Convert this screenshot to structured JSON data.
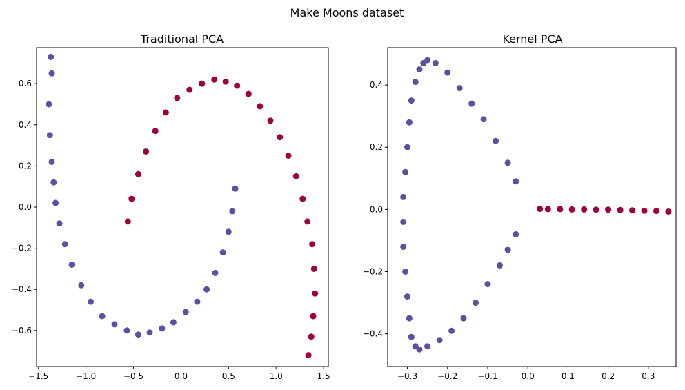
{
  "figure": {
    "suptitle": "Make Moons dataset",
    "colors": {
      "class0": "#5e4fa2",
      "class1": "#9e0142",
      "axis": "#000000",
      "background": "#ffffff"
    }
  },
  "chart_data": [
    {
      "type": "scatter",
      "title": "Traditional PCA",
      "xlabel": "",
      "ylabel": "",
      "xlim": [
        -1.52,
        1.55
      ],
      "ylim": [
        -0.775,
        0.775
      ],
      "xticks": [
        -1.5,
        -1.0,
        -0.5,
        0.0,
        0.5,
        1.0,
        1.5
      ],
      "xtick_labels": [
        "−1.5",
        "−1.0",
        "−0.5",
        "0.0",
        "0.5",
        "1.0",
        "1.5"
      ],
      "yticks": [
        -0.6,
        -0.4,
        -0.2,
        0.0,
        0.2,
        0.4,
        0.6
      ],
      "ytick_labels": [
        "−0.6",
        "−0.4",
        "−0.2",
        "0.0",
        "0.2",
        "0.4",
        "0.6"
      ],
      "grid": false,
      "series": [
        {
          "color": "#5e4fa2",
          "points": [
            [
              -1.37,
              0.73
            ],
            [
              -1.36,
              0.65
            ],
            [
              -1.39,
              0.5
            ],
            [
              -1.38,
              0.35
            ],
            [
              -1.36,
              0.22
            ],
            [
              -1.34,
              0.12
            ],
            [
              -1.32,
              0.02
            ],
            [
              -1.28,
              -0.08
            ],
            [
              -1.22,
              -0.18
            ],
            [
              -1.15,
              -0.28
            ],
            [
              -1.05,
              -0.38
            ],
            [
              -0.95,
              -0.46
            ],
            [
              -0.83,
              -0.53
            ],
            [
              -0.7,
              -0.57
            ],
            [
              -0.57,
              -0.6
            ],
            [
              -0.45,
              -0.62
            ],
            [
              -0.33,
              -0.61
            ],
            [
              -0.2,
              -0.59
            ],
            [
              -0.08,
              -0.56
            ],
            [
              0.05,
              -0.51
            ],
            [
              0.17,
              -0.46
            ],
            [
              0.27,
              -0.4
            ],
            [
              0.36,
              -0.32
            ],
            [
              0.44,
              -0.22
            ],
            [
              0.5,
              -0.12
            ],
            [
              0.54,
              -0.02
            ],
            [
              0.57,
              0.09
            ]
          ]
        },
        {
          "color": "#9e0142",
          "points": [
            [
              -0.56,
              -0.07
            ],
            [
              -0.52,
              0.04
            ],
            [
              -0.45,
              0.16
            ],
            [
              -0.37,
              0.27
            ],
            [
              -0.27,
              0.37
            ],
            [
              -0.16,
              0.46
            ],
            [
              -0.04,
              0.53
            ],
            [
              0.09,
              0.57
            ],
            [
              0.22,
              0.6
            ],
            [
              0.35,
              0.62
            ],
            [
              0.47,
              0.61
            ],
            [
              0.59,
              0.59
            ],
            [
              0.71,
              0.55
            ],
            [
              0.83,
              0.49
            ],
            [
              0.94,
              0.42
            ],
            [
              1.04,
              0.34
            ],
            [
              1.13,
              0.25
            ],
            [
              1.21,
              0.15
            ],
            [
              1.28,
              0.04
            ],
            [
              1.33,
              -0.07
            ],
            [
              1.38,
              -0.18
            ],
            [
              1.4,
              -0.3
            ],
            [
              1.41,
              -0.42
            ],
            [
              1.39,
              -0.53
            ],
            [
              1.37,
              -0.63
            ],
            [
              1.34,
              -0.72
            ]
          ]
        }
      ]
    },
    {
      "type": "scatter",
      "title": "Kernel PCA",
      "xlabel": "",
      "ylabel": "",
      "xlim": [
        -0.349,
        0.369
      ],
      "ylim": [
        -0.505,
        0.52
      ],
      "xticks": [
        -0.3,
        -0.2,
        -0.1,
        0.0,
        0.1,
        0.2,
        0.3
      ],
      "xtick_labels": [
        "−0.3",
        "−0.2",
        "−0.1",
        "0.0",
        "0.1",
        "0.2",
        "0.3"
      ],
      "yticks": [
        -0.4,
        -0.2,
        0.0,
        0.2,
        0.4
      ],
      "ytick_labels": [
        "−0.4",
        "−0.2",
        "0.0",
        "0.2",
        "0.4"
      ],
      "grid": false,
      "series": [
        {
          "color": "#5e4fa2",
          "points": [
            [
              -0.03,
              0.09
            ],
            [
              -0.05,
              0.15
            ],
            [
              -0.08,
              0.22
            ],
            [
              -0.11,
              0.29
            ],
            [
              -0.14,
              0.34
            ],
            [
              -0.17,
              0.39
            ],
            [
              -0.2,
              0.44
            ],
            [
              -0.23,
              0.47
            ],
            [
              -0.25,
              0.48
            ],
            [
              -0.26,
              0.47
            ],
            [
              -0.27,
              0.45
            ],
            [
              -0.28,
              0.41
            ],
            [
              -0.29,
              0.35
            ],
            [
              -0.295,
              0.28
            ],
            [
              -0.3,
              0.2
            ],
            [
              -0.305,
              0.12
            ],
            [
              -0.31,
              0.04
            ],
            [
              -0.31,
              -0.04
            ],
            [
              -0.31,
              -0.12
            ],
            [
              -0.305,
              -0.2
            ],
            [
              -0.3,
              -0.28
            ],
            [
              -0.295,
              -0.35
            ],
            [
              -0.29,
              -0.41
            ],
            [
              -0.28,
              -0.44
            ],
            [
              -0.27,
              -0.45
            ],
            [
              -0.25,
              -0.44
            ],
            [
              -0.22,
              -0.42
            ],
            [
              -0.19,
              -0.39
            ],
            [
              -0.16,
              -0.35
            ],
            [
              -0.13,
              -0.3
            ],
            [
              -0.1,
              -0.24
            ],
            [
              -0.07,
              -0.18
            ],
            [
              -0.05,
              -0.13
            ],
            [
              -0.03,
              -0.08
            ]
          ]
        },
        {
          "color": "#9e0142",
          "points": [
            [
              0.03,
              0.002
            ],
            [
              0.05,
              0.001
            ],
            [
              0.08,
              0.001
            ],
            [
              0.11,
              0.0
            ],
            [
              0.14,
              0.0
            ],
            [
              0.17,
              -0.001
            ],
            [
              0.2,
              -0.001
            ],
            [
              0.23,
              -0.002
            ],
            [
              0.26,
              -0.003
            ],
            [
              0.29,
              -0.004
            ],
            [
              0.32,
              -0.005
            ],
            [
              0.35,
              -0.007
            ]
          ]
        }
      ]
    }
  ]
}
